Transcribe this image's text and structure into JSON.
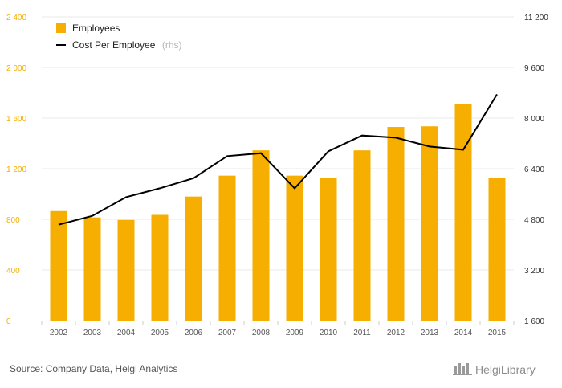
{
  "chart_data": {
    "type": "bar+line",
    "categories": [
      "2002",
      "2003",
      "2004",
      "2005",
      "2006",
      "2007",
      "2008",
      "2009",
      "2010",
      "2011",
      "2012",
      "2013",
      "2014",
      "2015"
    ],
    "series": [
      {
        "name": "Employees",
        "type": "bar",
        "axis": "left",
        "color": "#f6ae00",
        "values": [
          865,
          815,
          795,
          835,
          980,
          1145,
          1345,
          1145,
          1125,
          1345,
          1530,
          1535,
          1710,
          1130
        ]
      },
      {
        "name": "Cost Per Employee",
        "legend_note": "(rhs)",
        "type": "line",
        "axis": "right",
        "color": "#000000",
        "values": [
          4630,
          4910,
          5500,
          5780,
          6100,
          6800,
          6890,
          5780,
          6950,
          7450,
          7380,
          7100,
          7000,
          8750
        ]
      }
    ],
    "left_axis": {
      "min": 0,
      "max": 2400,
      "ticks": [
        "0",
        "400",
        "800",
        "1 200",
        "1 600",
        "2 000",
        "2 400"
      ],
      "tick_values": [
        0,
        400,
        800,
        1200,
        1600,
        2000,
        2400
      ]
    },
    "right_axis": {
      "min": 1600,
      "max": 11200,
      "ticks": [
        "1 600",
        "3 200",
        "4 800",
        "6 400",
        "8 000",
        "9 600",
        "11 200"
      ],
      "tick_values": [
        1600,
        3200,
        4800,
        6400,
        8000,
        9600,
        11200
      ]
    },
    "grid": true,
    "legend_position": "top-left"
  },
  "footer": {
    "source": "Source: Company Data, Helgi Analytics",
    "brand": "HelgiLibrary"
  },
  "colors": {
    "bar": "#f6ae00",
    "line": "#000000",
    "grid": "#e8e8e8"
  }
}
